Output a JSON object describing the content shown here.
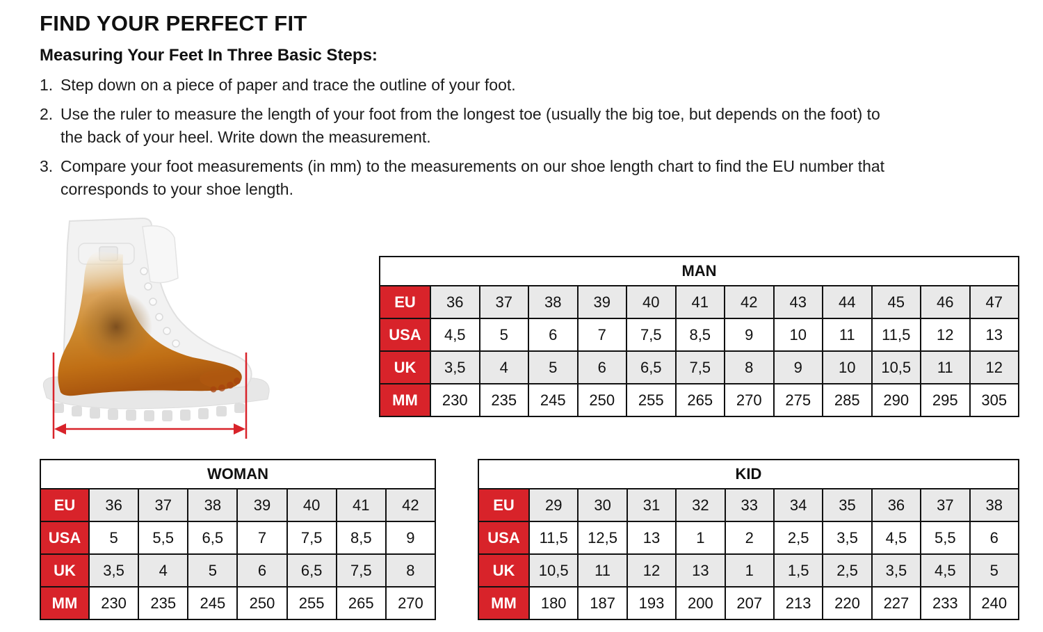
{
  "page": {
    "title": "FIND YOUR PERFECT FIT",
    "subtitle": "Measuring Your Feet In Three Basic Steps:",
    "steps": [
      {
        "num": "1.",
        "line1": "Step down on a piece of paper and trace the outline of your foot."
      },
      {
        "num": "2.",
        "line1": "Use the ruler to measure the length of your foot from the longest toe (usually the big toe, but depends on the foot) to",
        "line2": "the back of your heel. Write down the measurement."
      },
      {
        "num": "3.",
        "line1": "Compare your foot measurements (in mm) to the measurements on our shoe length chart to find the EU number that",
        "line2": "corresponds to your shoe length."
      }
    ]
  },
  "illustration": {
    "name": "xray-foot-in-boot-with-length-measurement-arrow"
  },
  "colors": {
    "accent_red": "#d8232a",
    "cell_gray": "#e9e9e9",
    "border_black": "#111111",
    "foot_orange": "#c98a2e"
  },
  "tables": [
    {
      "title": "MAN",
      "row_labels": [
        "EU",
        "USA",
        "UK",
        "MM"
      ],
      "rows": [
        [
          "36",
          "37",
          "38",
          "39",
          "40",
          "41",
          "42",
          "43",
          "44",
          "45",
          "46",
          "47"
        ],
        [
          "4,5",
          "5",
          "6",
          "7",
          "7,5",
          "8,5",
          "9",
          "10",
          "11",
          "11,5",
          "12",
          "13"
        ],
        [
          "3,5",
          "4",
          "5",
          "6",
          "6,5",
          "7,5",
          "8",
          "9",
          "10",
          "10,5",
          "11",
          "12"
        ],
        [
          "230",
          "235",
          "245",
          "250",
          "255",
          "265",
          "270",
          "275",
          "285",
          "290",
          "295",
          "305"
        ]
      ]
    },
    {
      "title": "WOMAN",
      "row_labels": [
        "EU",
        "USA",
        "UK",
        "MM"
      ],
      "rows": [
        [
          "36",
          "37",
          "38",
          "39",
          "40",
          "41",
          "42"
        ],
        [
          "5",
          "5,5",
          "6,5",
          "7",
          "7,5",
          "8,5",
          "9"
        ],
        [
          "3,5",
          "4",
          "5",
          "6",
          "6,5",
          "7,5",
          "8"
        ],
        [
          "230",
          "235",
          "245",
          "250",
          "255",
          "265",
          "270"
        ]
      ]
    },
    {
      "title": "KID",
      "row_labels": [
        "EU",
        "USA",
        "UK",
        "MM"
      ],
      "rows": [
        [
          "29",
          "30",
          "31",
          "32",
          "33",
          "34",
          "35",
          "36",
          "37",
          "38"
        ],
        [
          "11,5",
          "12,5",
          "13",
          "1",
          "2",
          "2,5",
          "3,5",
          "4,5",
          "5,5",
          "6"
        ],
        [
          "10,5",
          "11",
          "12",
          "13",
          "1",
          "1,5",
          "2,5",
          "3,5",
          "4,5",
          "5"
        ],
        [
          "180",
          "187",
          "193",
          "200",
          "207",
          "213",
          "220",
          "227",
          "233",
          "240"
        ]
      ]
    }
  ]
}
